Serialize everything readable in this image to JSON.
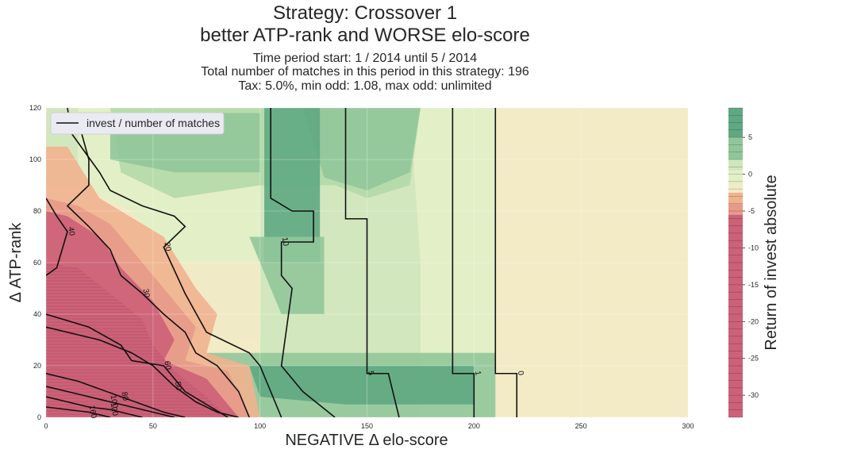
{
  "header": {
    "title_line1": "Strategy: Crossover 1",
    "title_line2": "better ATP-rank and WORSE elo-score",
    "subtitle_line1": "Time period start: 1 / 2014 until 5 / 2014",
    "subtitle_line2": "Total number of matches in this period in this strategy: 196",
    "subtitle_line3": "Tax: 5.0%, min odd: 1.08, max odd: unlimited"
  },
  "chart_data": {
    "type": "contour",
    "xlabel": "NEGATIVE Δ elo-score",
    "ylabel": "Δ ATP-rank",
    "xlim": [
      0,
      300
    ],
    "ylim": [
      0,
      120
    ],
    "xticks": [
      0,
      50,
      100,
      150,
      200,
      250,
      300
    ],
    "yticks": [
      0,
      20,
      40,
      60,
      80,
      100,
      120
    ],
    "grid": true,
    "legend": {
      "position": "top-left",
      "entries": [
        "invest / number of matches"
      ]
    },
    "colorbar": {
      "label": "Return of invest absolute",
      "ticks": [
        5,
        0,
        -5,
        -10,
        -15,
        -20,
        -25,
        -30
      ],
      "range": [
        -33,
        9
      ],
      "colors": {
        "positive": "#5fa882",
        "light_positive": "#cfe7bd",
        "zero": "#f3ebc6",
        "light_negative": "#f0b28e",
        "negative": "#cc6178"
      }
    },
    "return_regions": [
      {
        "level": 7,
        "description": "dark green band x 102-128, y 60-120"
      },
      {
        "level": 3,
        "description": "green region x 30-170, y 85-120"
      },
      {
        "level": 8,
        "description": "dark green patch x 95-200, y 5-20"
      },
      {
        "level": -30,
        "description": "red region lower-left x 0-90, y 0-80"
      },
      {
        "level": 0,
        "description": "neutral x 215-300"
      }
    ],
    "contour_lines": [
      {
        "label": "0",
        "points": [
          [
            210,
            120
          ],
          [
            210,
            17
          ],
          [
            220,
            17
          ],
          [
            220,
            0
          ]
        ]
      },
      {
        "label": "1",
        "points": [
          [
            190,
            120
          ],
          [
            190,
            17
          ],
          [
            200,
            17
          ],
          [
            200,
            0
          ]
        ]
      },
      {
        "label": "5",
        "points": [
          [
            140,
            120
          ],
          [
            140,
            77
          ],
          [
            150,
            77
          ],
          [
            150,
            17
          ],
          [
            160,
            17
          ],
          [
            165,
            0
          ]
        ]
      },
      {
        "label": "10",
        "points": [
          [
            105,
            120
          ],
          [
            105,
            85
          ],
          [
            115,
            80
          ],
          [
            125,
            80
          ],
          [
            125,
            68
          ],
          [
            110,
            68
          ],
          [
            110,
            55
          ],
          [
            115,
            50
          ],
          [
            110,
            20
          ],
          [
            120,
            10
          ],
          [
            135,
            0
          ]
        ]
      },
      {
        "label": "20",
        "points": [
          [
            10,
            120
          ],
          [
            12,
            110
          ],
          [
            25,
            95
          ],
          [
            30,
            88
          ],
          [
            45,
            82
          ],
          [
            60,
            78
          ],
          [
            65,
            74
          ],
          [
            55,
            66
          ],
          [
            65,
            48
          ],
          [
            75,
            33
          ],
          [
            95,
            25
          ],
          [
            100,
            20
          ],
          [
            105,
            10
          ],
          [
            110,
            0
          ]
        ]
      },
      {
        "label": "30",
        "points": [
          [
            15,
            115
          ],
          [
            20,
            100
          ],
          [
            20,
            90
          ],
          [
            10,
            82
          ],
          [
            20,
            74
          ],
          [
            30,
            65
          ],
          [
            35,
            55
          ],
          [
            45,
            48
          ],
          [
            55,
            40
          ],
          [
            65,
            33
          ],
          [
            70,
            25
          ],
          [
            80,
            20
          ],
          [
            90,
            10
          ],
          [
            95,
            0
          ]
        ]
      },
      {
        "label": "40",
        "points": [
          [
            0,
            85
          ],
          [
            5,
            78
          ],
          [
            10,
            72
          ],
          [
            5,
            58
          ],
          [
            0,
            55
          ]
        ]
      },
      {
        "label": "60",
        "points": [
          [
            0,
            40
          ],
          [
            20,
            35
          ],
          [
            35,
            28
          ],
          [
            40,
            22
          ],
          [
            55,
            20
          ],
          [
            60,
            15
          ],
          [
            65,
            10
          ],
          [
            75,
            5
          ],
          [
            85,
            0
          ]
        ]
      },
      {
        "label": "80",
        "points": [
          [
            0,
            17
          ],
          [
            15,
            14
          ],
          [
            25,
            11
          ],
          [
            35,
            8
          ],
          [
            45,
            5
          ],
          [
            55,
            2
          ],
          [
            65,
            0
          ]
        ]
      },
      {
        "label": "100",
        "points": [
          [
            0,
            12
          ],
          [
            10,
            10
          ],
          [
            20,
            8
          ],
          [
            30,
            6
          ],
          [
            40,
            4
          ],
          [
            50,
            2
          ],
          [
            60,
            0
          ]
        ]
      },
      {
        "label": "120",
        "points": [
          [
            0,
            8
          ],
          [
            10,
            6
          ],
          [
            20,
            4
          ],
          [
            30,
            3
          ],
          [
            40,
            1
          ],
          [
            45,
            0
          ]
        ]
      },
      {
        "label": "160",
        "points": [
          [
            0,
            4
          ],
          [
            10,
            3
          ],
          [
            20,
            2
          ],
          [
            30,
            0
          ]
        ]
      },
      {
        "label": "50",
        "points": [
          [
            0,
            35
          ],
          [
            25,
            30
          ],
          [
            40,
            25
          ],
          [
            50,
            20
          ],
          [
            60,
            12
          ],
          [
            70,
            6
          ],
          [
            80,
            2
          ],
          [
            90,
            0
          ]
        ]
      }
    ]
  }
}
